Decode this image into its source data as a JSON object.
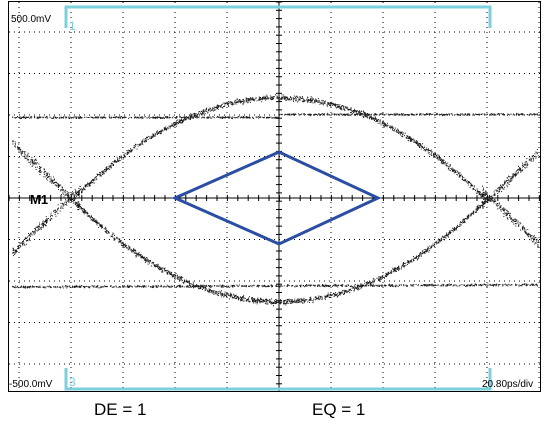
{
  "screen": {
    "top_voltage": "500.0mV",
    "bottom_voltage": "-500.0mV",
    "timebase": "20.80ps/div",
    "marker": "M1",
    "channel_top": "1",
    "channel_bottom": "3"
  },
  "captions": {
    "left": "DE = 1",
    "right": "EQ = 1"
  },
  "colors": {
    "background": "#ffffff",
    "grid": "#000000",
    "trace": "#1a1a1a",
    "channel_marker": "#7ccfdc",
    "mask": "#2b4ea3"
  }
}
